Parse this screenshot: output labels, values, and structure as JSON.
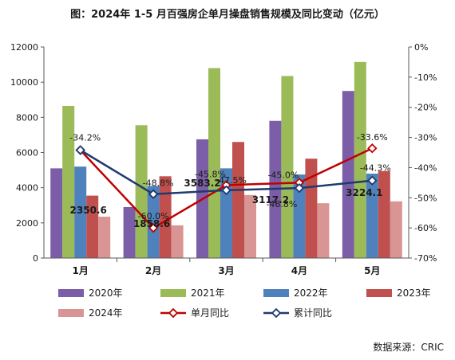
{
  "chart_data": {
    "type": "bar",
    "title": "图：2024年 1-5 月百强房企单月操盘销售规模及同比变动（亿元）",
    "categories": [
      "1月",
      "2月",
      "3月",
      "4月",
      "5月"
    ],
    "y_left": {
      "min": 0,
      "max": 12000,
      "ticks": [
        "0",
        "2000",
        "4000",
        "6000",
        "8000",
        "10000",
        "12000"
      ]
    },
    "y_right": {
      "min": -70,
      "max": 0,
      "ticks": [
        "-70%",
        "-60%",
        "-50%",
        "-40%",
        "-30%",
        "-20%",
        "-10%",
        "0%"
      ]
    },
    "bar_series": [
      {
        "name": "2020年",
        "color": "#7b5ea7",
        "values": [
          5100,
          2900,
          6750,
          7800,
          9500
        ]
      },
      {
        "name": "2021年",
        "color": "#9bbb59",
        "values": [
          8650,
          7550,
          10800,
          10350,
          11150
        ]
      },
      {
        "name": "2022年",
        "color": "#4f81bd",
        "values": [
          5200,
          4100,
          5100,
          4750,
          4800
        ]
      },
      {
        "name": "2023年",
        "color": "#c0504d",
        "values": [
          3550,
          4650,
          6600,
          5650,
          4950
        ]
      },
      {
        "name": "2024年",
        "color": "#d99594",
        "values": [
          2350.6,
          1858.6,
          3583.2,
          3117.2,
          3224.1
        ]
      }
    ],
    "line_series": [
      {
        "name": "单月同比",
        "color": "#c00000",
        "values": [
          -34.2,
          -60.0,
          -45.8,
          -45.0,
          -33.6
        ],
        "labels": [
          "",
          "-60.0%",
          "-45.8%",
          "-45.0%",
          "-33.6%"
        ]
      },
      {
        "name": "累计同比",
        "color": "#1f3a6e",
        "values": [
          -34.2,
          -48.8,
          -47.5,
          -46.8,
          -44.3
        ],
        "labels": [
          "-34.2%",
          "-48.8%",
          "-47.5%",
          "-46.8%",
          "-44.3%"
        ]
      }
    ],
    "bar_value_labels": [
      "2350.6",
      "1858.6",
      "3583.2",
      "3117.2",
      "3224.1"
    ],
    "legend_position": "bottom",
    "source": "数据来源：CRIC"
  }
}
